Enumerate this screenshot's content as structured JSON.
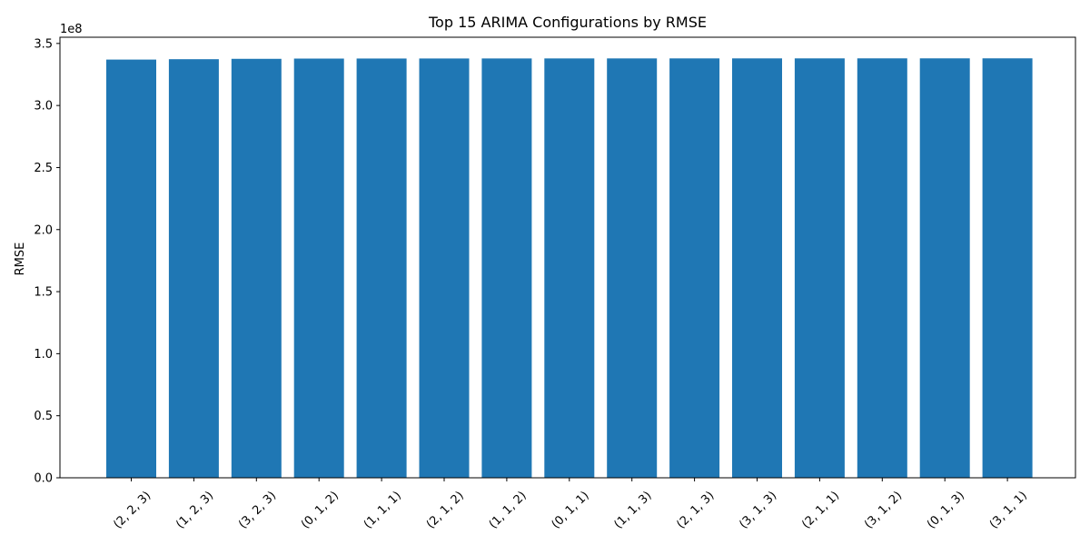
{
  "chart_data": {
    "type": "bar",
    "title": "Top 15 ARIMA Configurations by RMSE",
    "xlabel": "",
    "ylabel": "RMSE",
    "y_offset_label": "1e8",
    "categories": [
      "(2, 2, 3)",
      "(1, 2, 3)",
      "(3, 2, 3)",
      "(0, 1, 2)",
      "(1, 1, 1)",
      "(2, 1, 2)",
      "(1, 1, 2)",
      "(0, 1, 1)",
      "(1, 1, 3)",
      "(2, 1, 3)",
      "(3, 1, 3)",
      "(2, 1, 1)",
      "(3, 1, 2)",
      "(0, 1, 3)",
      "(3, 1, 1)"
    ],
    "values": [
      337000000,
      337300000,
      337600000,
      337800000,
      337850000,
      337880000,
      337900000,
      337920000,
      337940000,
      337950000,
      337960000,
      337970000,
      337980000,
      337990000,
      338000000
    ],
    "ylim": [
      0,
      355000000
    ],
    "yticks": [
      0,
      50000000,
      100000000,
      150000000,
      200000000,
      250000000,
      300000000,
      350000000
    ],
    "ytick_labels": [
      "0.0",
      "0.5",
      "1.0",
      "1.5",
      "2.0",
      "2.5",
      "3.0",
      "3.5"
    ],
    "bar_color": "#1f77b4",
    "grid": false,
    "legend": "none"
  }
}
